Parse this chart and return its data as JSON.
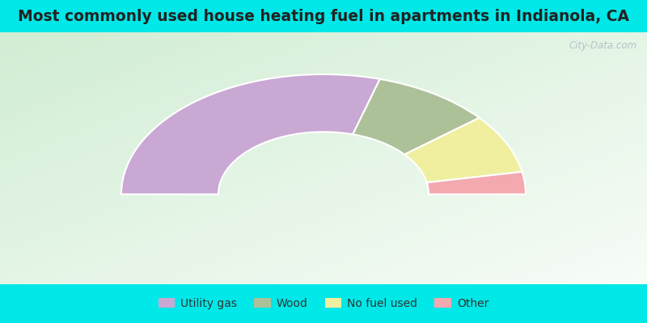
{
  "title": "Most commonly used house heating fuel in apartments in Indianola, CA",
  "segments": [
    {
      "label": "Utility gas",
      "value": 59,
      "color": "#c9a8d4"
    },
    {
      "label": "Wood",
      "value": 19,
      "color": "#adc199"
    },
    {
      "label": "No fuel used",
      "value": 16,
      "color": "#f0efa0"
    },
    {
      "label": "Other",
      "value": 6,
      "color": "#f4a8b0"
    }
  ],
  "cyan_color": "#00e8e8",
  "title_color": "#222222",
  "title_fontsize": 13.5,
  "legend_fontsize": 10,
  "watermark": "City-Data.com",
  "chart_bg": "#d8edd8",
  "outer_r": 1.0,
  "inner_r": 0.52
}
